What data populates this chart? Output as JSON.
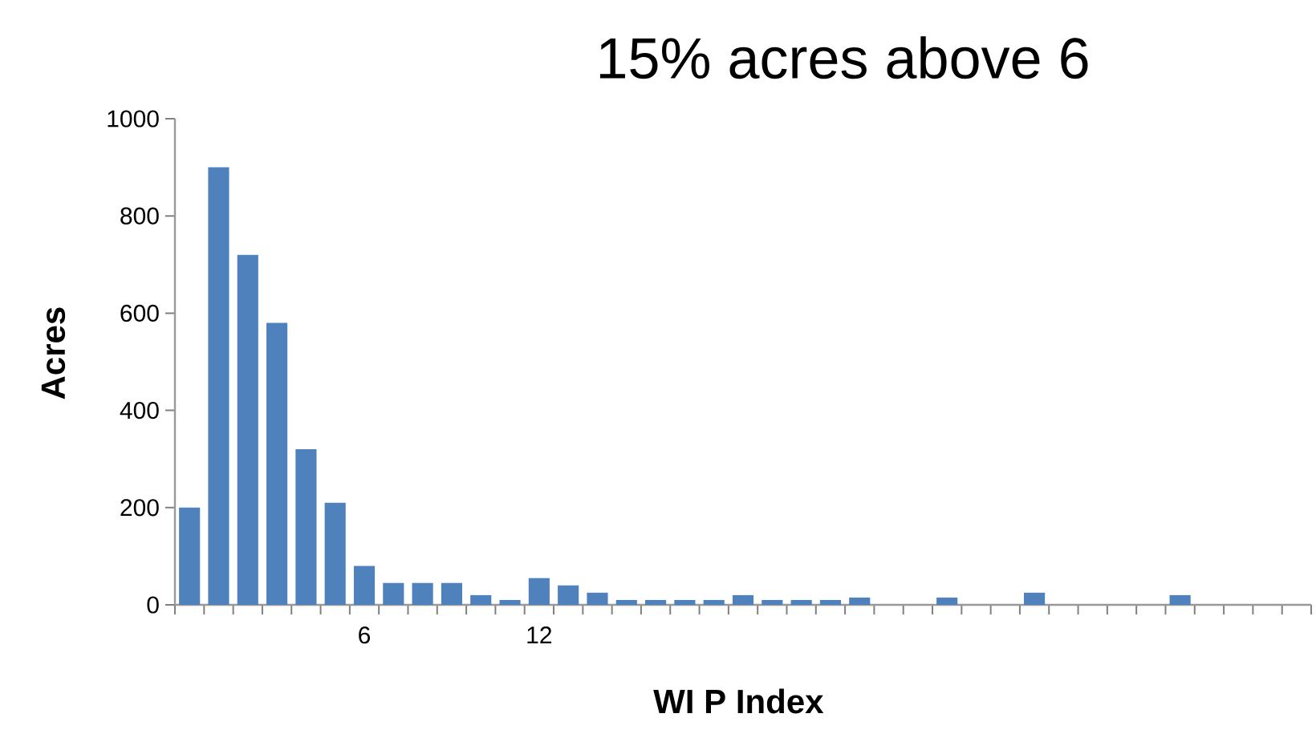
{
  "chart_data": {
    "type": "bar",
    "title": "15% acres above 6",
    "xlabel": "WI  P Index",
    "ylabel": "Acres",
    "categories": [
      null,
      null,
      null,
      null,
      null,
      null,
      "6",
      null,
      null,
      null,
      null,
      null,
      "12",
      null,
      null,
      null,
      null,
      null,
      null,
      null,
      null,
      null,
      null,
      null,
      null,
      null,
      null,
      null,
      null,
      null,
      null,
      null,
      null,
      null,
      null,
      null,
      null,
      null,
      null
    ],
    "values": [
      200,
      900,
      720,
      580,
      320,
      210,
      80,
      45,
      45,
      45,
      20,
      10,
      55,
      40,
      25,
      10,
      10,
      10,
      10,
      20,
      10,
      10,
      10,
      15,
      0,
      0,
      15,
      0,
      0,
      25,
      0,
      0,
      0,
      0,
      20,
      0,
      0,
      0,
      0
    ],
    "color": "#4f81bd",
    "ylim": [
      0,
      1000
    ],
    "yticks": [
      0,
      200,
      400,
      600,
      800,
      1000
    ]
  }
}
